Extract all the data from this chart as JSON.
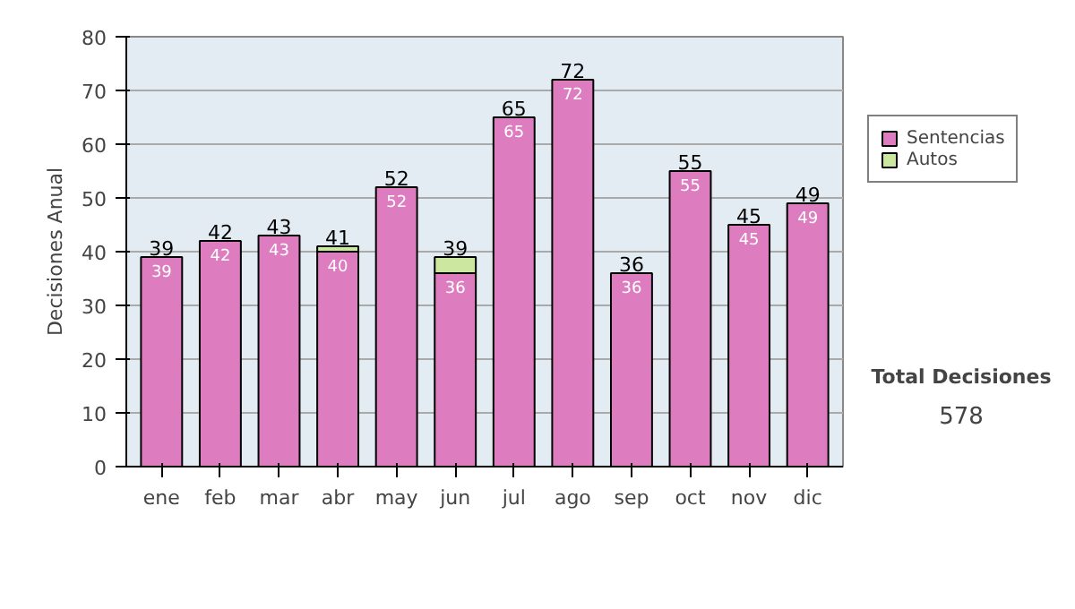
{
  "chart_data": {
    "type": "bar",
    "stacked": true,
    "ylabel": "Decisiones Anual",
    "categories": [
      "ene",
      "feb",
      "mar",
      "abr",
      "may",
      "jun",
      "jul",
      "ago",
      "sep",
      "oct",
      "nov",
      "dic"
    ],
    "series": [
      {
        "name": "Sentencias",
        "color": "#dd7dc0",
        "values": [
          39,
          42,
          43,
          40,
          52,
          36,
          65,
          72,
          36,
          55,
          45,
          49
        ],
        "value_labels": [
          "39",
          "42",
          "43",
          "40",
          "52",
          "36",
          "65",
          "72",
          "36",
          "55",
          "45",
          "49"
        ]
      },
      {
        "name": "Autos",
        "color": "#cce8a0",
        "values": [
          null,
          null,
          null,
          1,
          null,
          3,
          null,
          null,
          null,
          null,
          null,
          null
        ]
      }
    ],
    "totals": [
      "39",
      "42",
      "43",
      "41",
      "52",
      "39",
      "65",
      "72",
      "36",
      "55",
      "45",
      "49"
    ],
    "ylim": [
      0,
      80
    ],
    "yticks": [
      0,
      10,
      20,
      30,
      40,
      50,
      60,
      70,
      80
    ],
    "grid": "y",
    "legend": "right",
    "annotations": [
      "Total Decisiones",
      "578"
    ]
  }
}
